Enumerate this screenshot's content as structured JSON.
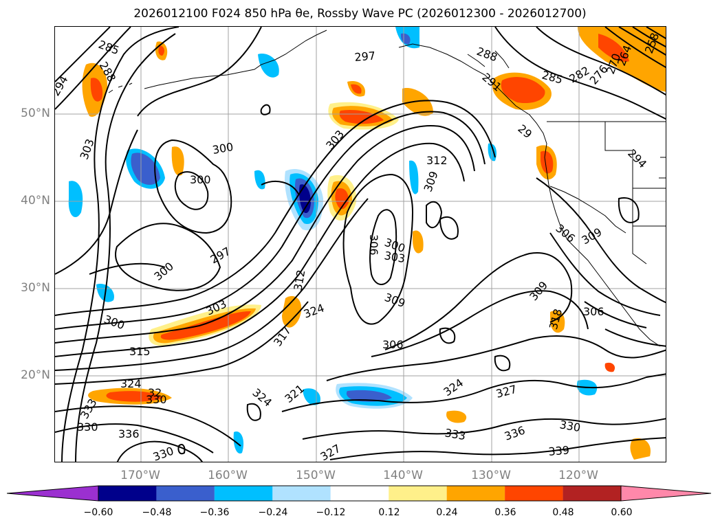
{
  "figure": {
    "title": "2026012100 F024 850 hPa θe, Rossby Wave PC (2026012300 - 2026012700)"
  },
  "axes": {
    "lat_labels": [
      "50°N",
      "40°N",
      "30°N",
      "20°N"
    ],
    "lon_labels": [
      "170°W",
      "160°W",
      "150°W",
      "140°W",
      "130°W",
      "120°W"
    ],
    "grid": true
  },
  "contour_labels": [
    "285",
    "288",
    "294",
    "303",
    "300",
    "300",
    "297",
    "300",
    "303",
    "300",
    "315",
    "324",
    "32",
    "330",
    "333",
    "330",
    "336",
    "330",
    "297",
    "288",
    "291",
    "285",
    "282",
    "276",
    "270",
    "264",
    "258",
    "29",
    "294",
    "303",
    "312",
    "309",
    "306",
    "300",
    "303",
    "312",
    "324",
    "317",
    "309",
    "306",
    "324",
    "321",
    "327",
    "324",
    "327",
    "333",
    "336",
    "330",
    "339",
    "306",
    "309",
    "309",
    "318",
    "306"
  ],
  "colorbar": {
    "ticks": [
      "−0.60",
      "−0.48",
      "−0.36",
      "−0.24",
      "−0.12",
      "0.12",
      "0.24",
      "0.36",
      "0.48",
      "0.60"
    ],
    "colors": [
      "#9b30d0",
      "#00008b",
      "#3a5fcd",
      "#00bfff",
      "#b0e2ff",
      "#ffffff",
      "#fff08a",
      "#ffa500",
      "#ff4500",
      "#b22222",
      "#ff88aa"
    ],
    "extend": "both"
  },
  "colors": {
    "contour": "#000000",
    "coast": "#000000",
    "grid": "#a0a0a0",
    "axis_label": "#808080"
  }
}
